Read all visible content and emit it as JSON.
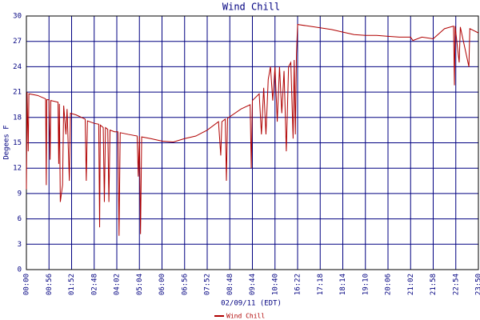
{
  "chart_data": {
    "type": "line",
    "title": "Wind Chill",
    "y_label": "Degees F",
    "x_label": "02/09/11 (EDT)",
    "xlim": [
      0,
      20
    ],
    "ylim": [
      0,
      30
    ],
    "xticks": [
      {
        "value": 0,
        "label": "00:00"
      },
      {
        "value": 1,
        "label": "00:56"
      },
      {
        "value": 2,
        "label": "01:52"
      },
      {
        "value": 3,
        "label": "02:48"
      },
      {
        "value": 4,
        "label": "04:02"
      },
      {
        "value": 5,
        "label": "05:04"
      },
      {
        "value": 6,
        "label": "06:00"
      },
      {
        "value": 7,
        "label": "06:56"
      },
      {
        "value": 8,
        "label": "07:52"
      },
      {
        "value": 9,
        "label": "08:48"
      },
      {
        "value": 10,
        "label": "09:44"
      },
      {
        "value": 11,
        "label": "10:40"
      },
      {
        "value": 12,
        "label": "16:22"
      },
      {
        "value": 13,
        "label": "17:18"
      },
      {
        "value": 14,
        "label": "18:14"
      },
      {
        "value": 15,
        "label": "19:10"
      },
      {
        "value": 16,
        "label": "20:06"
      },
      {
        "value": 17,
        "label": "21:02"
      },
      {
        "value": 18,
        "label": "21:58"
      },
      {
        "value": 19,
        "label": "22:54"
      },
      {
        "value": 20,
        "label": "23:50"
      }
    ],
    "yticks": [
      0,
      3,
      6,
      9,
      12,
      15,
      18,
      21,
      24,
      27,
      30
    ],
    "grid": true,
    "legend": "bottom",
    "x": [
      0,
      0.03,
      0.08,
      0.11,
      0.5,
      0.85,
      0.88,
      0.9,
      1.0,
      1.05,
      1.08,
      1.4,
      1.43,
      1.46,
      1.5,
      1.6,
      1.65,
      1.75,
      1.8,
      1.9,
      1.95,
      2.2,
      2.6,
      2.65,
      2.7,
      3.0,
      3.2,
      3.24,
      3.27,
      3.4,
      3.45,
      3.5,
      3.6,
      3.65,
      3.7,
      3.9,
      4.05,
      4.1,
      4.15,
      4.5,
      4.9,
      4.95,
      5.0,
      5.05,
      5.1,
      5.5,
      6.0,
      6.5,
      7.0,
      7.5,
      8.0,
      8.5,
      8.6,
      8.65,
      8.8,
      8.85,
      8.9,
      9.5,
      9.9,
      9.95,
      10.0,
      10.3,
      10.4,
      10.5,
      10.6,
      10.7,
      10.8,
      10.9,
      11.0,
      11.1,
      11.2,
      11.3,
      11.4,
      11.5,
      11.6,
      11.7,
      11.8,
      11.85,
      11.9,
      11.95,
      12.0,
      12.5,
      13.0,
      13.5,
      14.0,
      14.5,
      15.0,
      15.5,
      16.0,
      16.5,
      17.0,
      17.1,
      17.5,
      18.0,
      18.5,
      18.9,
      18.94,
      18.97,
      19.15,
      19.2,
      19.58,
      19.62,
      20.0
    ],
    "series": [
      {
        "name": "Wind Chill",
        "color": "#b00000",
        "values": [
          9.5,
          21,
          14,
          20.8,
          20.6,
          20.2,
          10,
          20.1,
          20.1,
          13,
          20,
          19.8,
          12.5,
          19.6,
          8,
          10,
          19.4,
          16,
          19,
          10.5,
          18.5,
          18.3,
          17.8,
          10.5,
          17.6,
          17.3,
          17.2,
          5,
          17.1,
          16.8,
          8,
          16.8,
          16.6,
          8,
          16.5,
          16.3,
          16.3,
          4,
          16.2,
          16,
          15.8,
          11,
          15.8,
          4.2,
          15.7,
          15.5,
          15.2,
          15.1,
          15.5,
          15.8,
          16.5,
          17.5,
          13.5,
          17.5,
          17.8,
          10.5,
          17.9,
          19,
          19.5,
          12,
          20,
          20.8,
          16,
          21.5,
          16,
          22.5,
          24,
          20,
          24,
          17.5,
          24,
          18.5,
          23.5,
          14,
          24,
          24.5,
          15.5,
          24.8,
          16,
          25.5,
          29,
          28.8,
          28.6,
          28.4,
          28.1,
          27.8,
          27.7,
          27.7,
          27.6,
          27.5,
          27.5,
          27.1,
          27.5,
          27.3,
          28.5,
          28.8,
          21.8,
          28.8,
          24.5,
          28.7,
          24,
          28.5,
          28
        ]
      }
    ]
  }
}
